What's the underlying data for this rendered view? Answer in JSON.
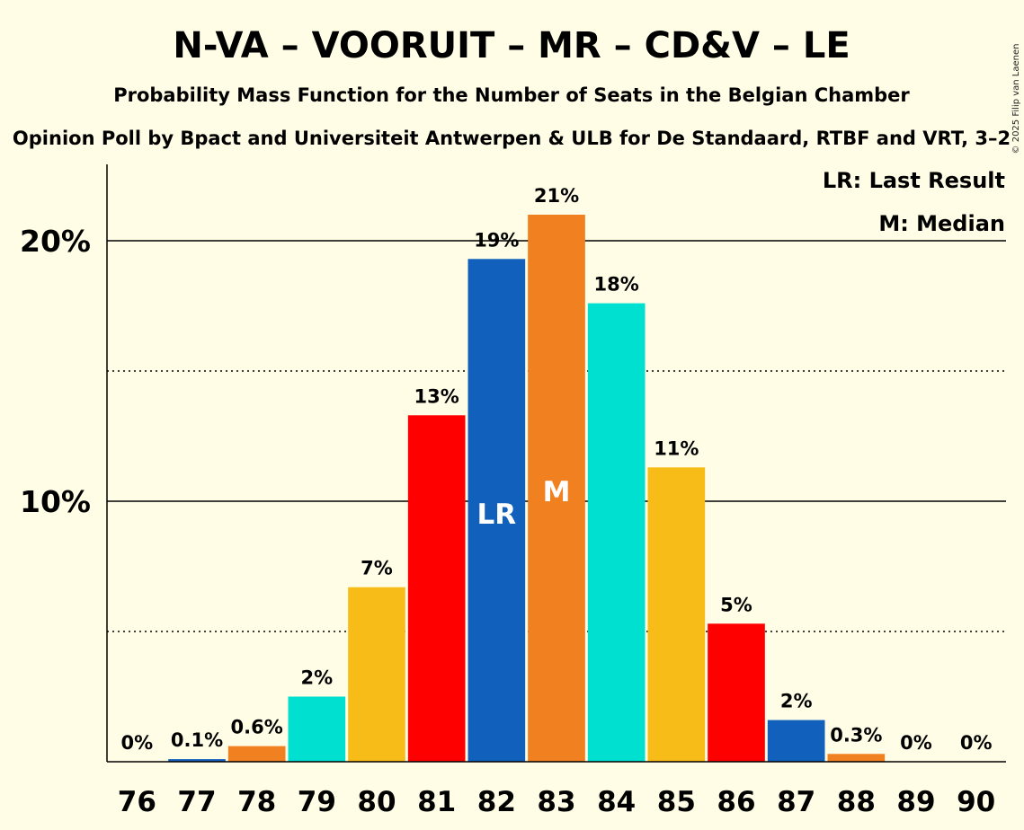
{
  "title": "N-VA – VOORUIT – MR – CD&V – LE",
  "subtitle": "Probability Mass Function for the Number of Seats in the Belgian Chamber",
  "source": "Opinion Poll by Bpact and Universiteit Antwerpen & ULB for De Standaard, RTBF and VRT, 3–2",
  "copyright": "© 2025 Filip van Laenen",
  "legend": {
    "last_result": "LR: Last Result",
    "median": "M: Median"
  },
  "chart_data": {
    "type": "bar",
    "categories": [
      "76",
      "77",
      "78",
      "79",
      "80",
      "81",
      "82",
      "83",
      "84",
      "85",
      "86",
      "87",
      "88",
      "89",
      "90"
    ],
    "values": [
      0,
      0.1,
      0.6,
      2.5,
      6.7,
      13.3,
      19.3,
      21.0,
      17.6,
      11.3,
      5.3,
      1.6,
      0.3,
      0,
      0
    ],
    "labels": [
      "0%",
      "0.1%",
      "0.6%",
      "2%",
      "7%",
      "13%",
      "19%",
      "21%",
      "18%",
      "11%",
      "5%",
      "2%",
      "0.3%",
      "0%",
      "0%"
    ],
    "colors": [
      "#F5C000",
      "#1460BE",
      "#F08020",
      "#00E0D0",
      "#F8BC18",
      "#FF0000",
      "#1160BC",
      "#F08020",
      "#00E0D0",
      "#F8BC18",
      "#FF0000",
      "#1160BC",
      "#F08020",
      "#00E0D0",
      "#F8BC18"
    ],
    "markers": {
      "82": "LR",
      "83": "M"
    },
    "yticks": [
      {
        "value": 10,
        "label": "10%"
      },
      {
        "value": 20,
        "label": "20%"
      }
    ],
    "ylim": [
      0,
      23
    ],
    "grid": true
  }
}
